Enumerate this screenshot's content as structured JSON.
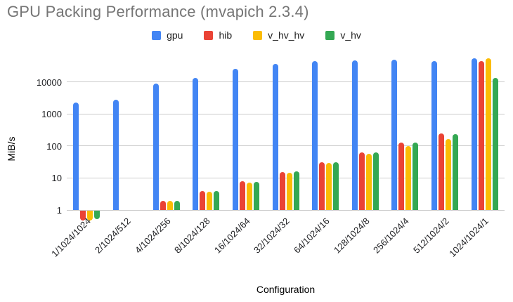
{
  "chart_data": {
    "type": "bar",
    "title": "GPU Packing Performance (mvapich 2.3.4)",
    "xlabel": "Configuration",
    "ylabel": "MiB/s",
    "yscale": "log",
    "ylim": [
      1,
      70000
    ],
    "yticks": [
      1,
      10,
      100,
      1000,
      10000
    ],
    "grid": true,
    "legend_position": "top",
    "categories": [
      "1/1024/1024",
      "2/1024/512",
      "4/1024/256",
      "8/1024/128",
      "16/1024/64",
      "32/1024/32",
      "64/1024/16",
      "128/1024/8",
      "256/1024/4",
      "512/1024/2",
      "1024/1024/1"
    ],
    "series": [
      {
        "name": "gpu",
        "color": "#4285F4",
        "values": [
          2250,
          2750,
          8900,
          13500,
          25500,
          36000,
          44500,
          46000,
          49000,
          45500,
          55000
        ]
      },
      {
        "name": "hib",
        "color": "#EA4335",
        "values": [
          0.5,
          1,
          1.9,
          3.9,
          7.9,
          15.5,
          31,
          62,
          126,
          245,
          45000
        ]
      },
      {
        "name": "v_hv_hv",
        "color": "#FBBC04",
        "values": [
          0.5,
          1,
          1.9,
          3.8,
          7.2,
          14.5,
          29,
          56,
          100,
          165,
          55000
        ]
      },
      {
        "name": "v_hv",
        "color": "#34A853",
        "values": [
          0.55,
          1,
          1.9,
          3.9,
          7.7,
          16,
          31,
          62,
          128,
          233,
          13500
        ]
      }
    ]
  },
  "colors": {
    "title_text": "#757575",
    "axis_text": "#202124",
    "gridline": "#cccccc",
    "background": "#ffffff"
  }
}
